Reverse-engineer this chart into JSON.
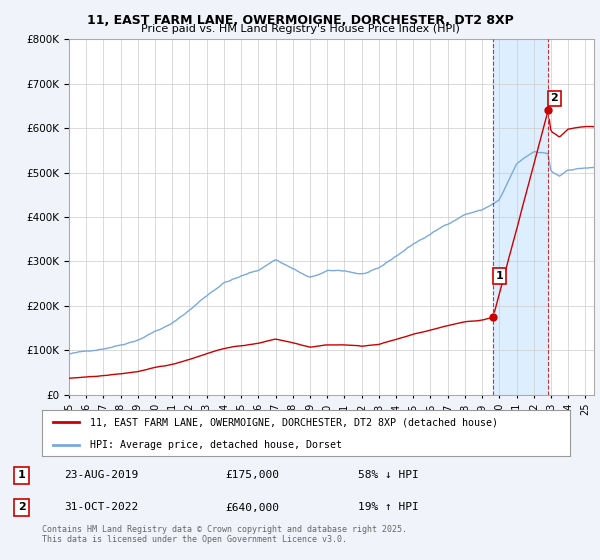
{
  "title1": "11, EAST FARM LANE, OWERMOIGNE, DORCHESTER, DT2 8XP",
  "title2": "Price paid vs. HM Land Registry's House Price Index (HPI)",
  "legend_label_red": "11, EAST FARM LANE, OWERMOIGNE, DORCHESTER, DT2 8XP (detached house)",
  "legend_label_blue": "HPI: Average price, detached house, Dorset",
  "annotation1_date": "23-AUG-2019",
  "annotation1_price": "£175,000",
  "annotation1_hpi": "58% ↓ HPI",
  "annotation2_date": "31-OCT-2022",
  "annotation2_price": "£640,000",
  "annotation2_hpi": "19% ↑ HPI",
  "footer": "Contains HM Land Registry data © Crown copyright and database right 2025.\nThis data is licensed under the Open Government Licence v3.0.",
  "ylim": [
    0,
    800000
  ],
  "yticks": [
    0,
    100000,
    200000,
    300000,
    400000,
    500000,
    600000,
    700000,
    800000
  ],
  "background_color": "#f0f4fa",
  "plot_bg": "#ffffff",
  "shade_color": "#ddeeff",
  "red_color": "#cc0000",
  "blue_color": "#7aaadd",
  "point1_x": 2019.64,
  "point1_y": 175000,
  "point2_x": 2022.83,
  "point2_y": 640000,
  "xmin": 1995,
  "xmax": 2025.5
}
